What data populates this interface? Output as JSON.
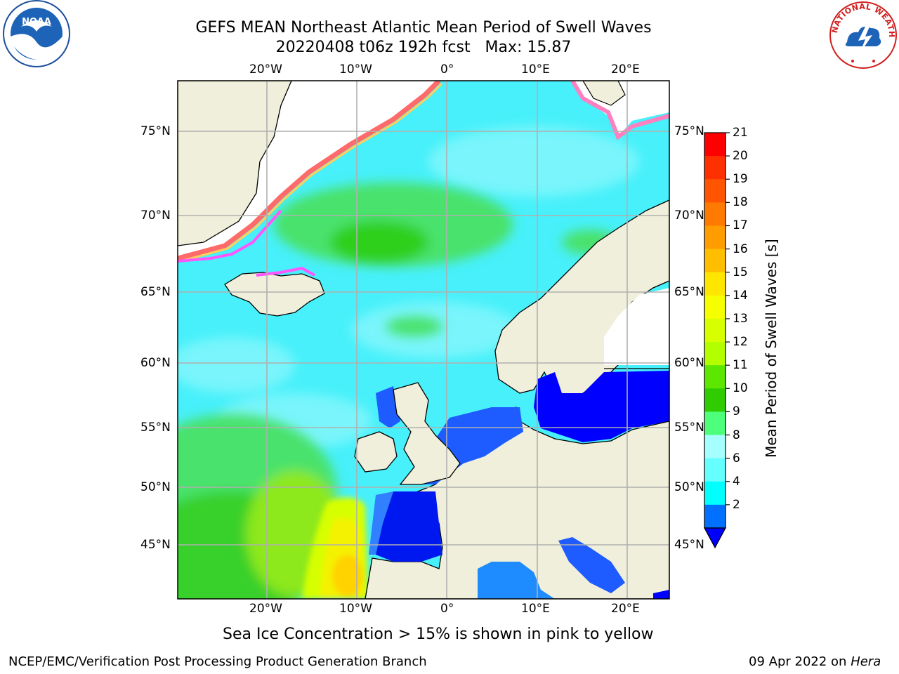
{
  "title": {
    "line1": "GEFS MEAN Northeast Atlantic Mean Period of Swell Waves",
    "line2": "20220408 t06z 192h fcst   Max: 15.87"
  },
  "axes": {
    "lon_ticks": [
      "20°W",
      "10°W",
      "0°",
      "10°E",
      "20°E"
    ],
    "lat_ticks": [
      "75°N",
      "70°N",
      "65°N",
      "60°N",
      "55°N",
      "50°N",
      "45°N"
    ]
  },
  "colorbar": {
    "label": "Mean Period of Swell Waves [s]",
    "ticks": [
      "21",
      "20",
      "19",
      "18",
      "17",
      "16",
      "15",
      "14",
      "13",
      "12",
      "11",
      "10",
      "9",
      "8",
      "6",
      "4",
      "2"
    ],
    "colors": [
      "#ff0000",
      "#ff3000",
      "#ff5500",
      "#ff7a00",
      "#ff9d00",
      "#ffbf00",
      "#ffe600",
      "#f5ff00",
      "#d8ff00",
      "#b3ff00",
      "#5ce600",
      "#2ecc00",
      "#4dff7a",
      "#a6ffff",
      "#66ffff",
      "#00ffff",
      "#0070ff"
    ],
    "extend_color": "#0000ff"
  },
  "note": "Sea Ice Concentration > 15% is shown in pink to yellow",
  "footer": {
    "left": "NCEP/EMC/Verification Post Processing Product Generation Branch",
    "date": "09 Apr 2022 on",
    "host": "Hera"
  },
  "logos": {
    "left": "NOAA",
    "right": "NATIONAL WEATHER SERVICE"
  }
}
